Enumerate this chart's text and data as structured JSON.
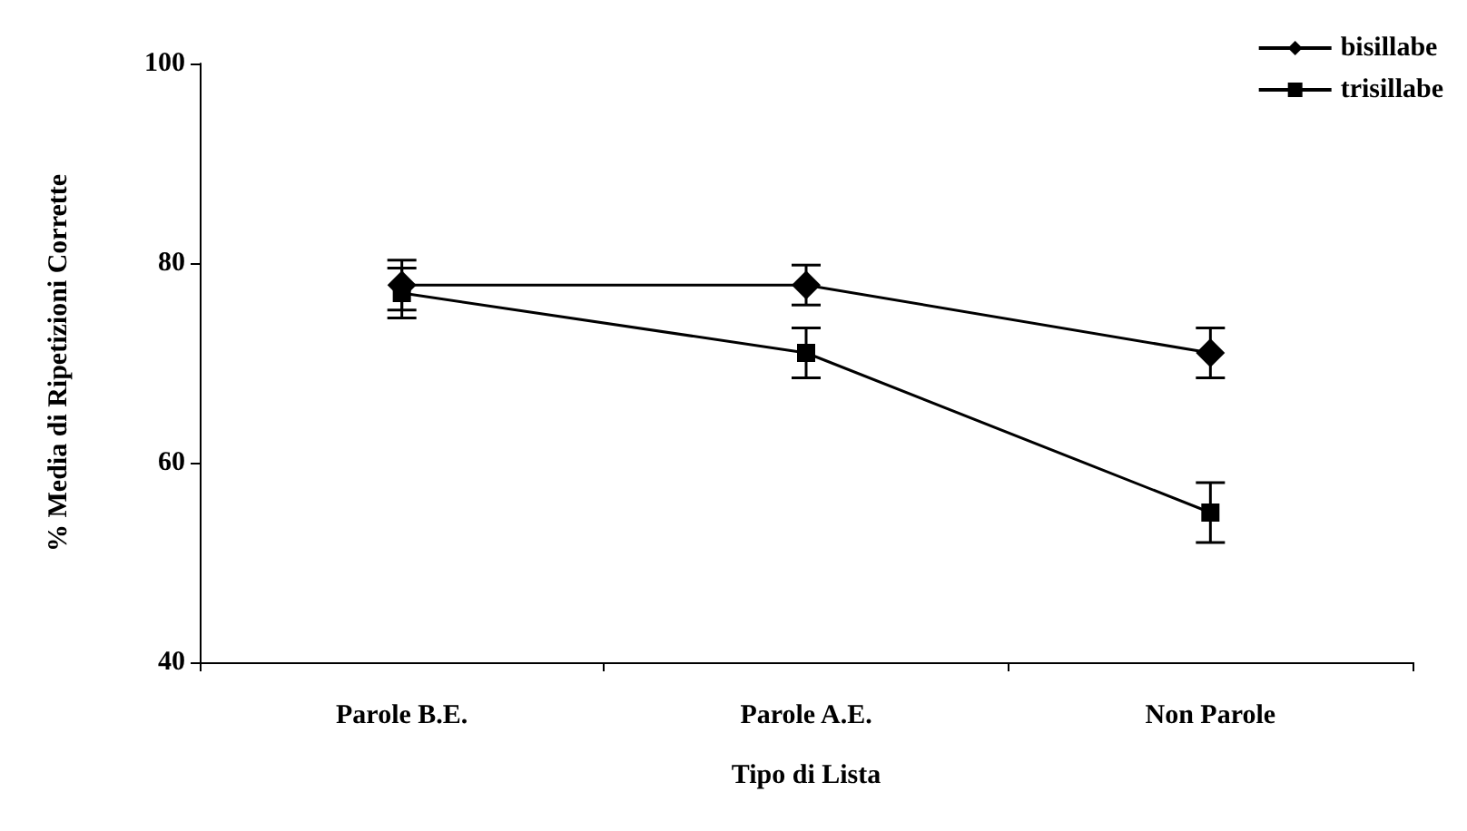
{
  "chart_data": {
    "type": "line",
    "xlabel": "Tipo di Lista",
    "ylabel": "% Media di Ripetizioni Corrette",
    "categories": [
      "Parole B.E.",
      "Parole A.E.",
      "Non Parole"
    ],
    "ylim": [
      40,
      100
    ],
    "yticks": [
      40,
      60,
      80,
      100
    ],
    "grid": false,
    "legend": "top right",
    "line_style": "solid",
    "series": [
      {
        "name": "bisillabe",
        "color": "#000000",
        "marker": "diamond",
        "values": [
          77.8,
          77.8,
          71
        ],
        "errors": [
          2.5,
          2,
          2.5
        ]
      },
      {
        "name": "trisillabe",
        "color": "#000000",
        "marker": "square",
        "values": [
          77,
          71,
          55
        ],
        "errors": [
          2.5,
          2.5,
          3
        ]
      }
    ]
  }
}
